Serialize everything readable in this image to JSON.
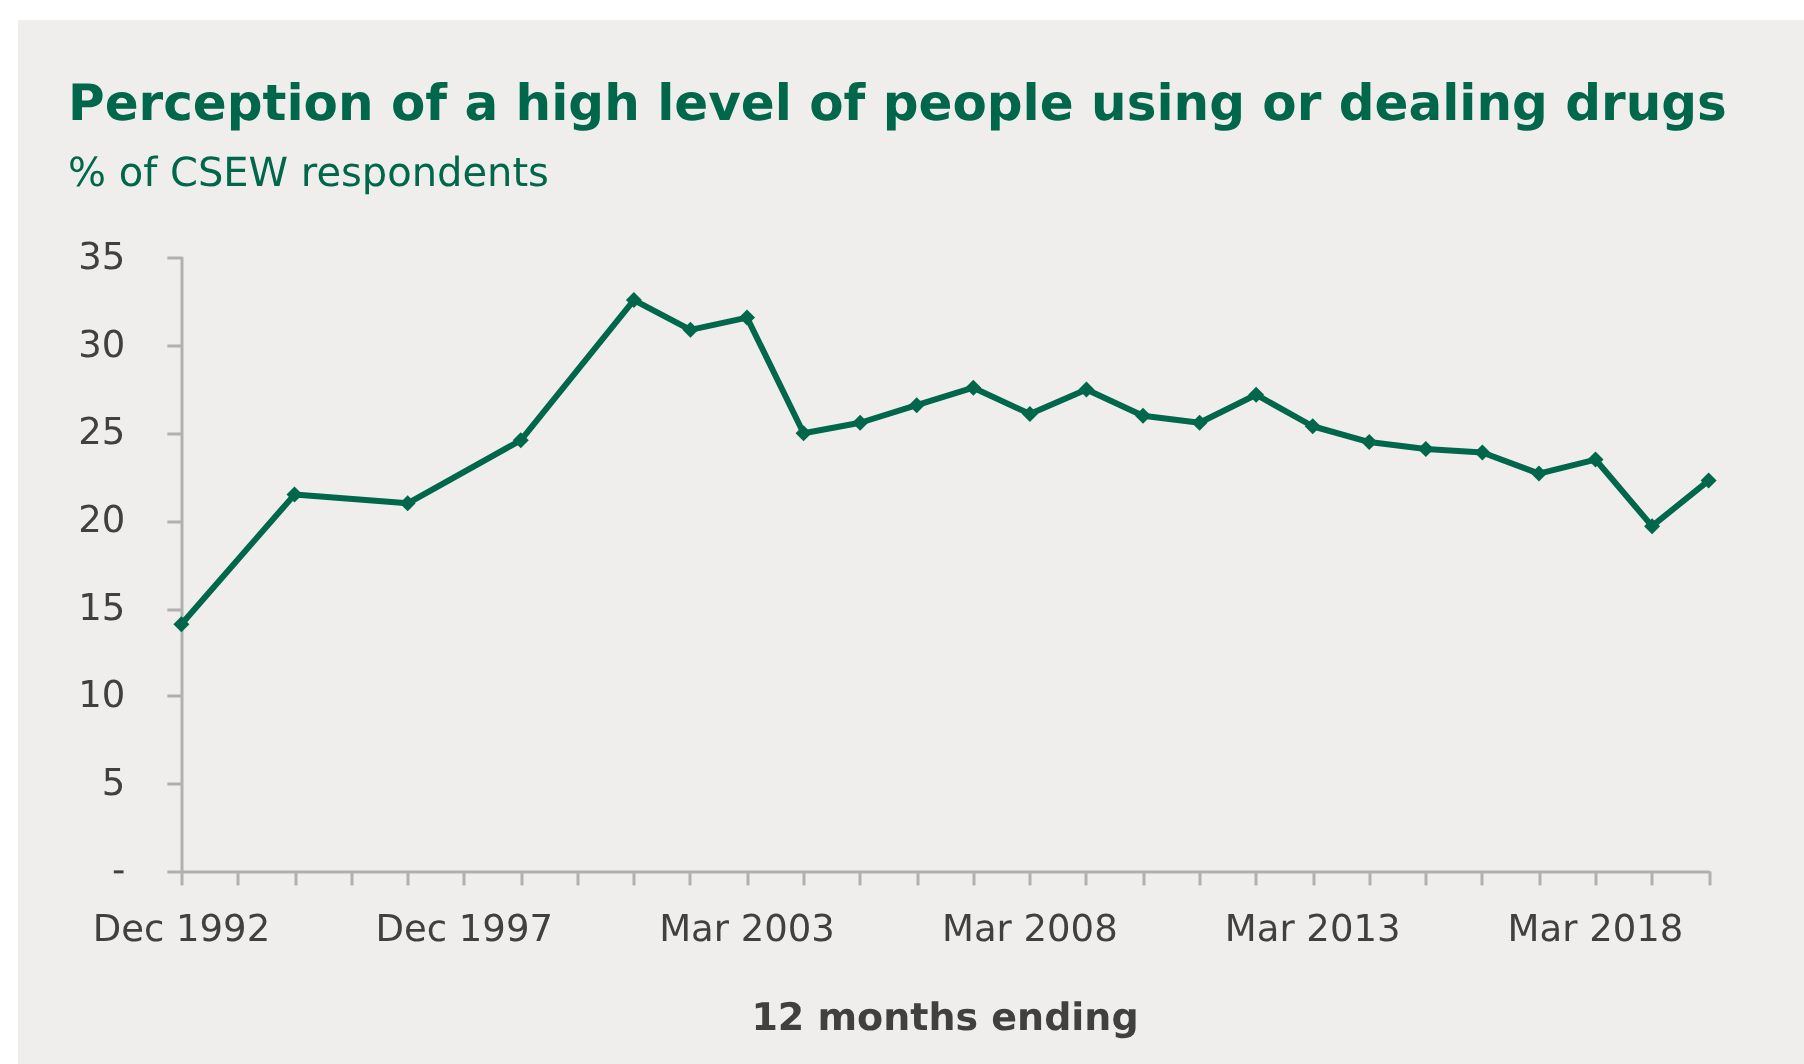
{
  "chart_data": {
    "type": "line",
    "title": "Perception of a high level of people using or dealing drugs",
    "subtitle": "% of CSEW respondents",
    "xlabel": "12 months ending",
    "categories": [
      "Dec 1992",
      null,
      null,
      null,
      null,
      "Dec 1997",
      null,
      null,
      null,
      null,
      "Mar 2003",
      null,
      null,
      null,
      null,
      "Mar 2008",
      null,
      null,
      null,
      null,
      "Mar 2013",
      null,
      null,
      null,
      null,
      "Mar 2018",
      null,
      null
    ],
    "series": [
      {
        "color": "#00674b",
        "values": [
          14.1,
          null,
          21.5,
          null,
          21.0,
          null,
          24.6,
          null,
          32.6,
          30.9,
          31.6,
          25.0,
          25.6,
          26.6,
          27.6,
          26.1,
          27.5,
          26.0,
          25.6,
          27.2,
          25.4,
          24.5,
          24.1,
          23.9,
          22.7,
          23.5,
          19.7,
          22.3
        ]
      }
    ],
    "ylim": [
      0,
      35
    ],
    "yticks": [
      {
        "value": 0,
        "label": "-"
      },
      5,
      10,
      15,
      20,
      25,
      30,
      35
    ],
    "marker": "diamond"
  }
}
